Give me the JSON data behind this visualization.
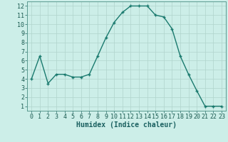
{
  "x": [
    0,
    1,
    2,
    3,
    4,
    5,
    6,
    7,
    8,
    9,
    10,
    11,
    12,
    13,
    14,
    15,
    16,
    17,
    18,
    19,
    20,
    21,
    22,
    23
  ],
  "y": [
    4,
    6.5,
    3.5,
    4.5,
    4.5,
    4.2,
    4.2,
    4.5,
    6.5,
    8.5,
    10.2,
    11.3,
    12.0,
    12.0,
    12.0,
    11.0,
    10.8,
    9.5,
    6.5,
    4.5,
    2.7,
    1.0,
    1.0,
    1.0
  ],
  "line_color": "#1a7a6e",
  "marker": "+",
  "bg_color": "#cceee8",
  "grid_color": "#b0d4cc",
  "xlabel": "Humidex (Indice chaleur)",
  "xlabel_fontsize": 7,
  "xlim": [
    -0.5,
    23.5
  ],
  "ylim": [
    0.5,
    12.5
  ],
  "yticks": [
    1,
    2,
    3,
    4,
    5,
    6,
    7,
    8,
    9,
    10,
    11,
    12
  ],
  "xticks": [
    0,
    1,
    2,
    3,
    4,
    5,
    6,
    7,
    8,
    9,
    10,
    11,
    12,
    13,
    14,
    15,
    16,
    17,
    18,
    19,
    20,
    21,
    22,
    23
  ],
  "tick_fontsize": 6,
  "linewidth": 1.0,
  "markersize": 3,
  "markeredgewidth": 1.0
}
